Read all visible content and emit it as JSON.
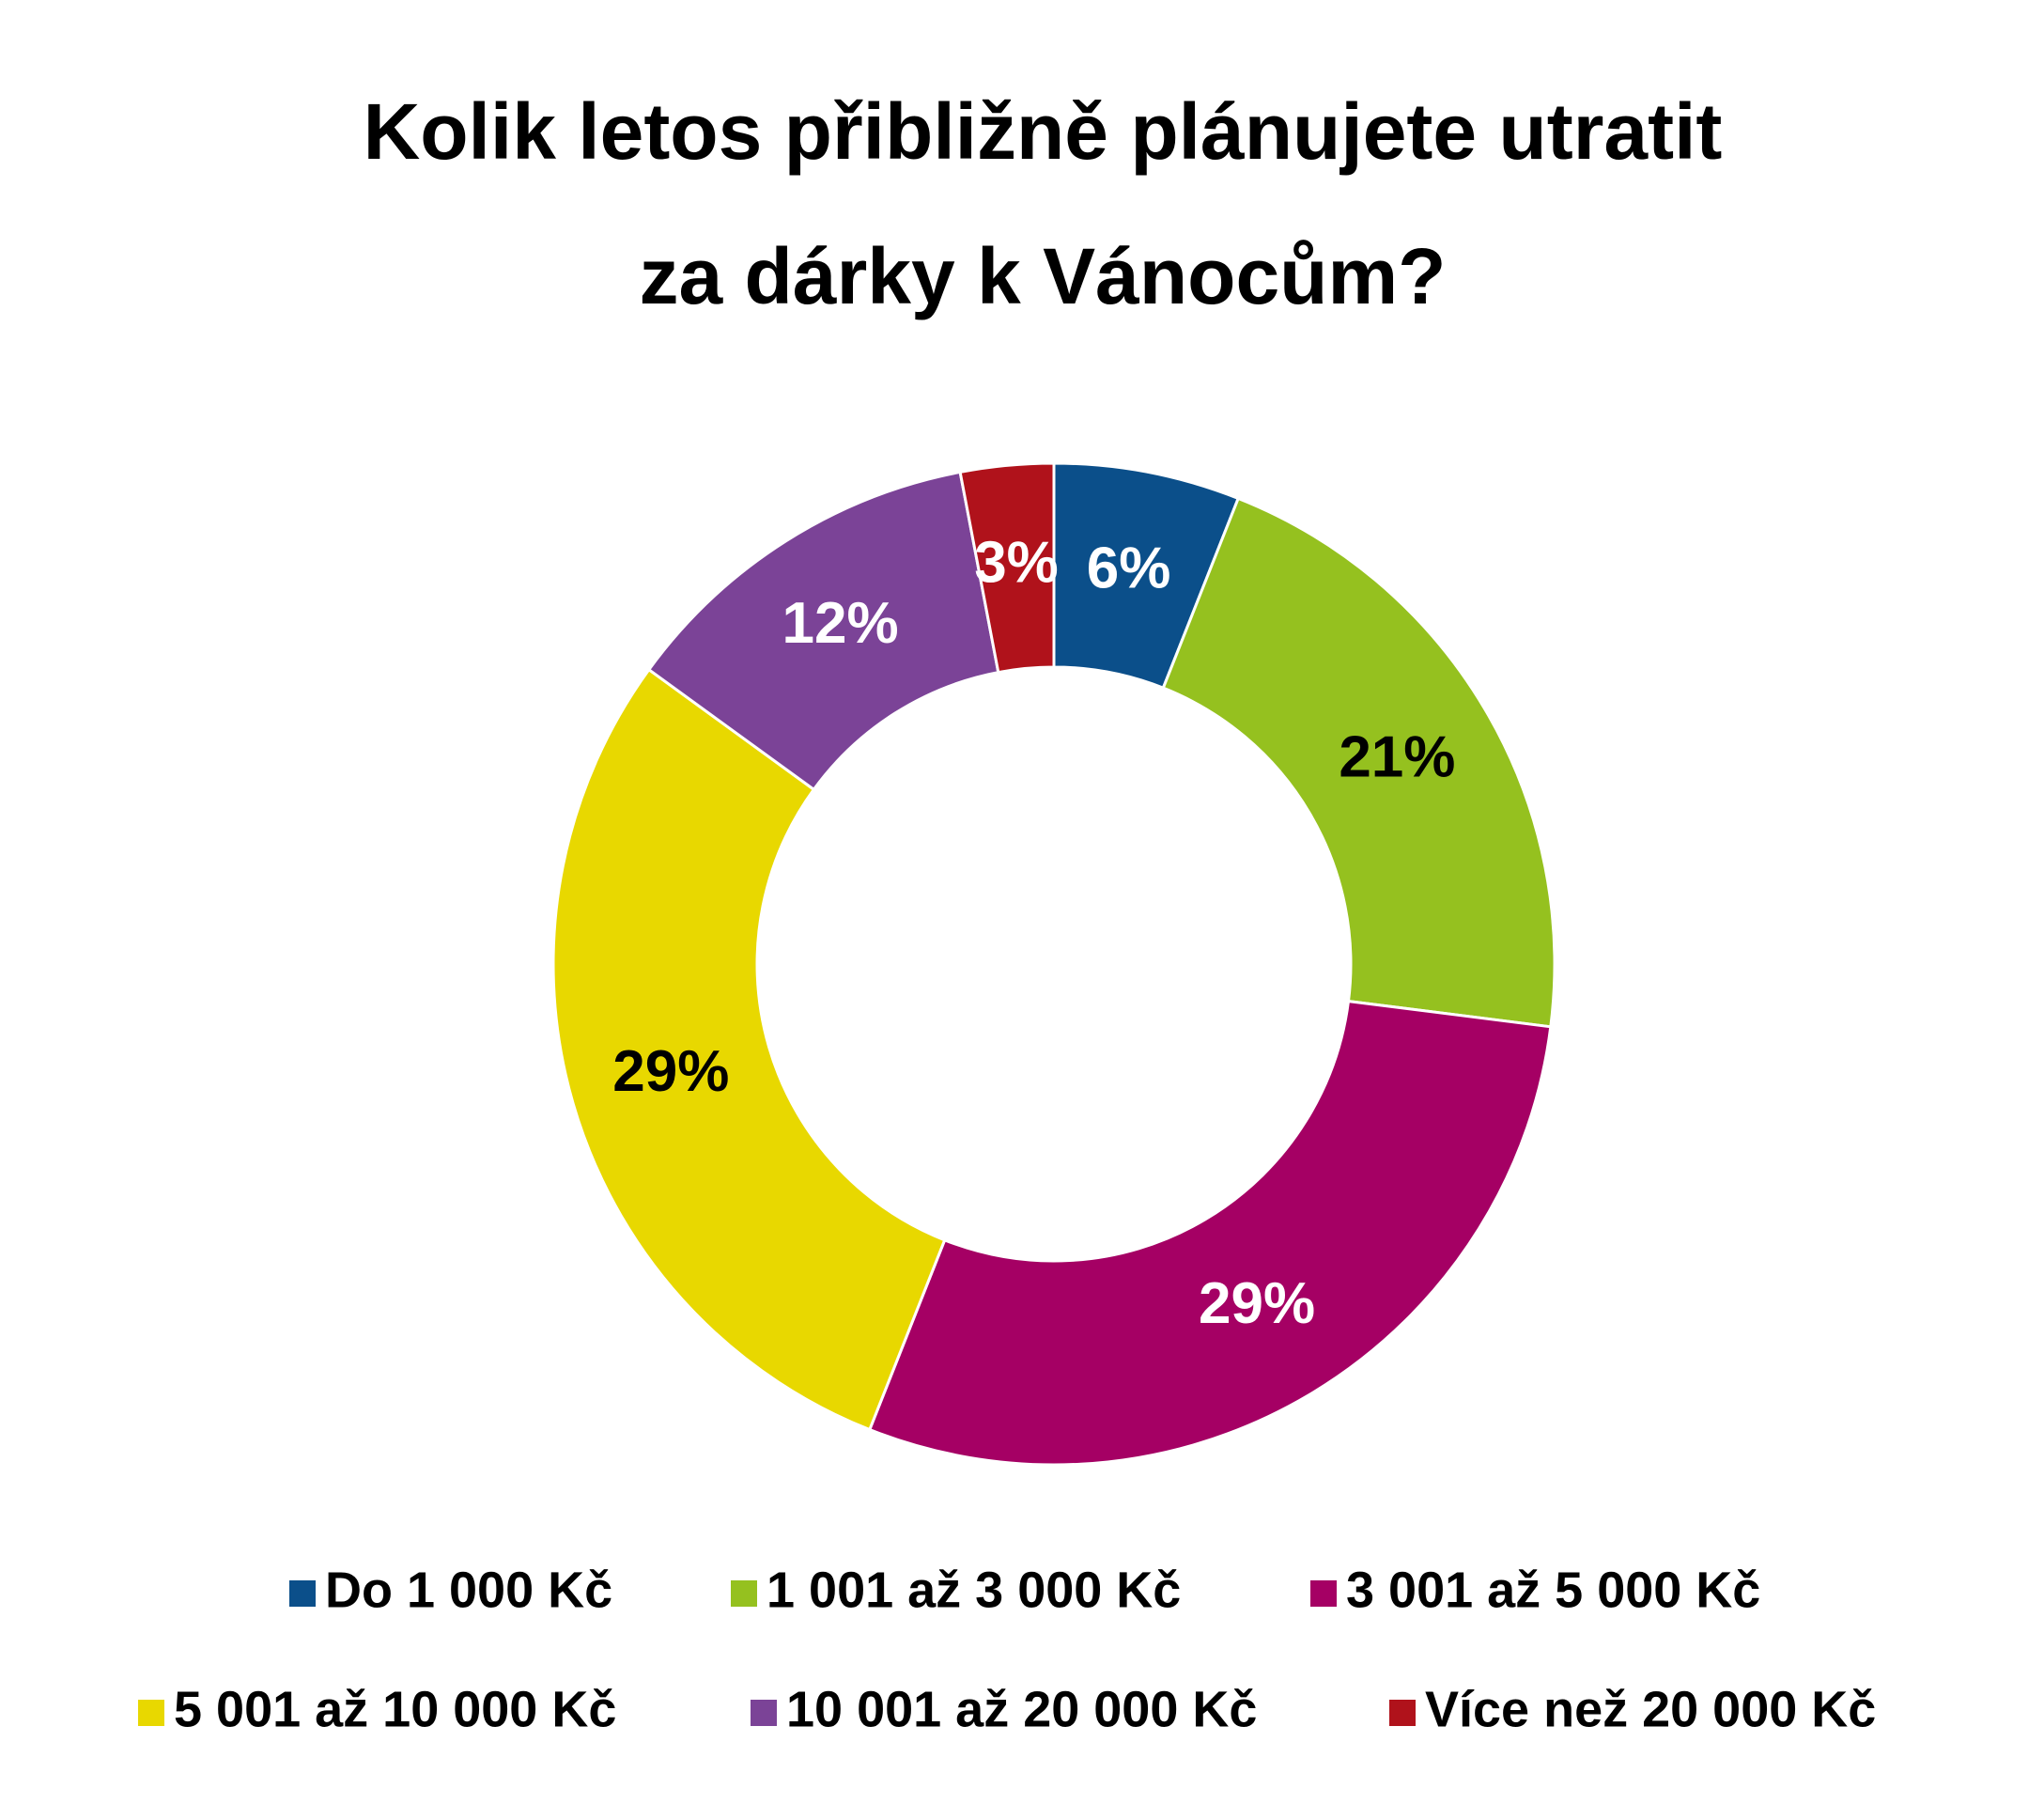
{
  "chart_data": {
    "type": "donut",
    "title": [
      "Kolik letos přibližně plánujete utratit",
      "za dárky k Vánocům?"
    ],
    "categories": [
      "Do 1 000 Kč",
      "1 001 až 3 000 Kč",
      "3 001 až 5 000 Kč",
      "5 001 až 10 000 Kč",
      "10 001 až 20 000 Kč",
      "Více než 20 000 Kč"
    ],
    "values": [
      6,
      21,
      29,
      29,
      12,
      3
    ],
    "value_labels": [
      "6%",
      "21%",
      "29%",
      "29%",
      "12%",
      "3%"
    ],
    "colors": [
      "#0b4f8a",
      "#95c11f",
      "#a50064",
      "#e8d800",
      "#7b4397",
      "#b0121b"
    ],
    "label_colors": [
      "#ffffff",
      "#000000",
      "#ffffff",
      "#000000",
      "#ffffff",
      "#ffffff"
    ],
    "legend": "bottom"
  }
}
